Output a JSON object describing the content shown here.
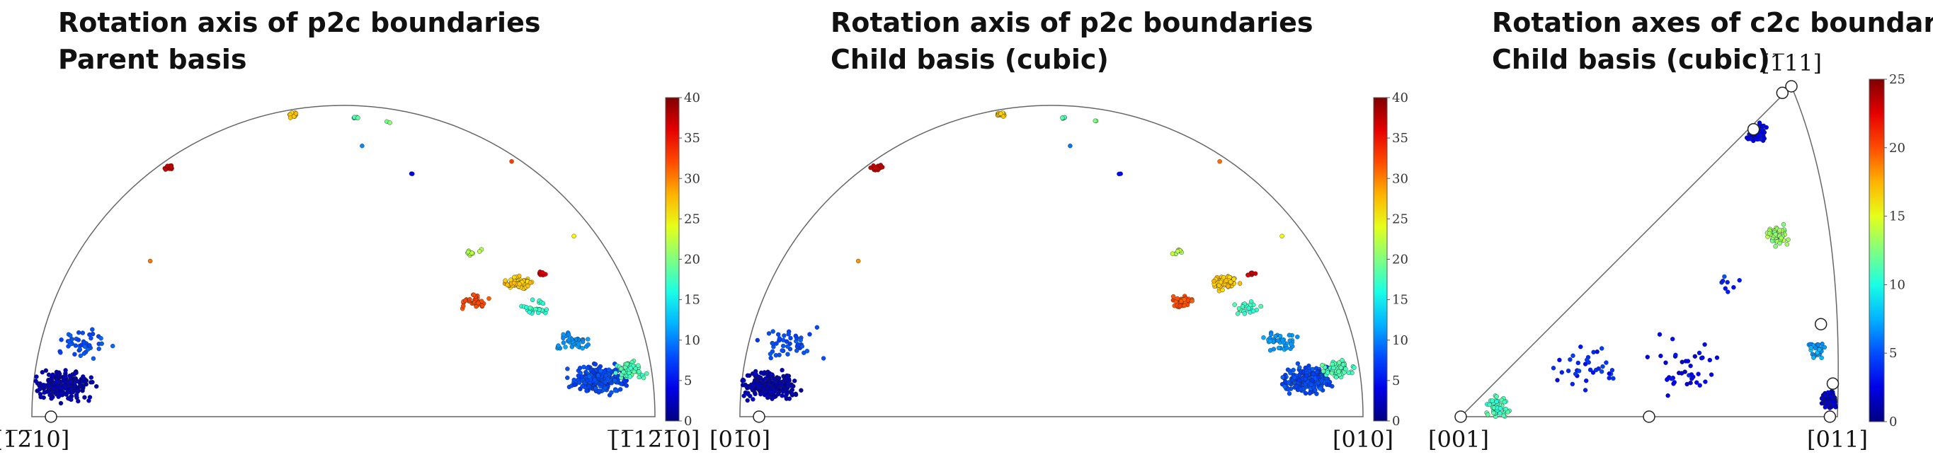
{
  "panels": [
    {
      "title_line1": "Rotation axis of p2c boundaries",
      "title_line2": "Parent basis",
      "pole_labels": {
        "left": "[1̅2̅10]",
        "right": "[̅1̅12̅1̅0]"
      }
    },
    {
      "title_line1": "Rotation axis of p2c boundaries",
      "title_line2": "Child basis (cubic)",
      "pole_labels": {
        "left": "[01̅0]",
        "right": "[010]"
      }
    },
    {
      "title_line1": "Rotation axes of c2c boundaries",
      "title_line2": "Child basis (cubic)",
      "pole_labels": {
        "top": "[1̅11]",
        "left": "[001]",
        "right": "[011]"
      }
    }
  ],
  "chart_data": [
    {
      "type": "scatter",
      "projection": "stereographic half-disk",
      "title": "Rotation axis of p2c boundaries",
      "subtitle": "Parent basis",
      "colorbar": {
        "min": 0,
        "max": 40,
        "ticks": [
          0,
          5,
          10,
          15,
          20,
          25,
          30,
          35,
          40
        ],
        "colormap": "jet"
      },
      "clusters": [
        {
          "x": 0.05,
          "y": 0.1,
          "value": 2,
          "n": 240,
          "spread": 0.06
        },
        {
          "x": 0.08,
          "y": 0.23,
          "value": 8,
          "n": 45,
          "spread": 0.07
        },
        {
          "x": 0.91,
          "y": 0.12,
          "value": 8,
          "n": 230,
          "spread": 0.06
        },
        {
          "x": 0.96,
          "y": 0.15,
          "value": 18,
          "n": 60,
          "spread": 0.035
        },
        {
          "x": 0.87,
          "y": 0.24,
          "value": 11,
          "n": 40,
          "spread": 0.04
        },
        {
          "x": 0.78,
          "y": 0.43,
          "value": 27,
          "n": 70,
          "spread": 0.028
        },
        {
          "x": 0.71,
          "y": 0.37,
          "value": 32,
          "n": 35,
          "spread": 0.03
        },
        {
          "x": 0.81,
          "y": 0.35,
          "value": 17,
          "n": 25,
          "spread": 0.03
        },
        {
          "x": 0.71,
          "y": 0.53,
          "value": 22,
          "n": 10,
          "spread": 0.02
        },
        {
          "x": 0.82,
          "y": 0.46,
          "value": 37,
          "n": 10,
          "spread": 0.01
        },
        {
          "x": 0.22,
          "y": 0.8,
          "value": 37,
          "n": 18,
          "spread": 0.012
        },
        {
          "x": 0.42,
          "y": 0.97,
          "value": 27,
          "n": 16,
          "spread": 0.012
        },
        {
          "x": 0.52,
          "y": 0.96,
          "value": 18,
          "n": 7,
          "spread": 0.006
        },
        {
          "x": 0.57,
          "y": 0.95,
          "value": 20,
          "n": 2,
          "spread": 0.01
        },
        {
          "x": 0.53,
          "y": 0.87,
          "value": 10,
          "n": 1,
          "spread": 0.0
        },
        {
          "x": 0.61,
          "y": 0.78,
          "value": 5,
          "n": 2,
          "spread": 0.004
        },
        {
          "x": 0.19,
          "y": 0.5,
          "value": 30,
          "n": 1,
          "spread": 0.0
        },
        {
          "x": 0.77,
          "y": 0.82,
          "value": 32,
          "n": 1,
          "spread": 0.0
        },
        {
          "x": 0.87,
          "y": 0.58,
          "value": 25,
          "n": 1,
          "spread": 0.0
        }
      ]
    },
    {
      "type": "scatter",
      "projection": "stereographic half-disk",
      "title": "Rotation axis of p2c boundaries",
      "subtitle": "Child basis (cubic)",
      "colorbar": {
        "min": 0,
        "max": 40,
        "ticks": [
          0,
          5,
          10,
          15,
          20,
          25,
          30,
          35,
          40
        ],
        "colormap": "jet"
      },
      "clusters": [
        {
          "x": 0.05,
          "y": 0.1,
          "value": 2,
          "n": 240,
          "spread": 0.06
        },
        {
          "x": 0.08,
          "y": 0.23,
          "value": 8,
          "n": 45,
          "spread": 0.07
        },
        {
          "x": 0.91,
          "y": 0.12,
          "value": 8,
          "n": 230,
          "spread": 0.06
        },
        {
          "x": 0.96,
          "y": 0.15,
          "value": 18,
          "n": 60,
          "spread": 0.035
        },
        {
          "x": 0.87,
          "y": 0.24,
          "value": 11,
          "n": 40,
          "spread": 0.04
        },
        {
          "x": 0.78,
          "y": 0.43,
          "value": 27,
          "n": 70,
          "spread": 0.028
        },
        {
          "x": 0.71,
          "y": 0.37,
          "value": 32,
          "n": 35,
          "spread": 0.03
        },
        {
          "x": 0.81,
          "y": 0.35,
          "value": 17,
          "n": 25,
          "spread": 0.03
        },
        {
          "x": 0.71,
          "y": 0.53,
          "value": 22,
          "n": 10,
          "spread": 0.02
        },
        {
          "x": 0.82,
          "y": 0.46,
          "value": 37,
          "n": 10,
          "spread": 0.01
        },
        {
          "x": 0.22,
          "y": 0.8,
          "value": 37,
          "n": 18,
          "spread": 0.012
        },
        {
          "x": 0.42,
          "y": 0.97,
          "value": 27,
          "n": 16,
          "spread": 0.012
        },
        {
          "x": 0.52,
          "y": 0.96,
          "value": 18,
          "n": 7,
          "spread": 0.006
        },
        {
          "x": 0.57,
          "y": 0.95,
          "value": 20,
          "n": 2,
          "spread": 0.01
        },
        {
          "x": 0.53,
          "y": 0.87,
          "value": 10,
          "n": 1,
          "spread": 0.0
        },
        {
          "x": 0.61,
          "y": 0.78,
          "value": 5,
          "n": 2,
          "spread": 0.004
        },
        {
          "x": 0.19,
          "y": 0.5,
          "value": 30,
          "n": 1,
          "spread": 0.0
        },
        {
          "x": 0.77,
          "y": 0.82,
          "value": 32,
          "n": 1,
          "spread": 0.0
        },
        {
          "x": 0.87,
          "y": 0.58,
          "value": 25,
          "n": 1,
          "spread": 0.0
        }
      ]
    },
    {
      "type": "scatter",
      "projection": "cubic standard triangle",
      "title": "Rotation axes of c2c boundaries",
      "subtitle": "Child basis (cubic)",
      "colorbar": {
        "min": 0,
        "max": 25,
        "ticks": [
          0,
          5,
          10,
          15,
          20,
          25
        ],
        "colormap": "jet"
      },
      "clusters": [
        {
          "x": 0.87,
          "y": 0.87,
          "value": 3,
          "n": 160,
          "spread": 0.04
        },
        {
          "x": 0.99,
          "y": 0.05,
          "value": 2,
          "n": 220,
          "spread": 0.03
        },
        {
          "x": 0.97,
          "y": 0.2,
          "value": 7,
          "n": 30,
          "spread": 0.04
        },
        {
          "x": 0.9,
          "y": 0.55,
          "value": 13,
          "n": 55,
          "spread": 0.04
        },
        {
          "x": 0.1,
          "y": 0.03,
          "value": 11,
          "n": 50,
          "spread": 0.05
        },
        {
          "x": 0.35,
          "y": 0.15,
          "value": 4,
          "n": 35,
          "spread": 0.12
        },
        {
          "x": 0.6,
          "y": 0.15,
          "value": 3,
          "n": 40,
          "spread": 0.12
        },
        {
          "x": 0.75,
          "y": 0.4,
          "value": 4,
          "n": 8,
          "spread": 0.06
        }
      ],
      "markers": [
        {
          "x": 0.0,
          "y": 0.0
        },
        {
          "x": 0.5,
          "y": 0.0
        },
        {
          "x": 0.98,
          "y": 0.0
        },
        {
          "x": 1.0,
          "y": 0.1
        },
        {
          "x": 0.99,
          "y": 0.28
        },
        {
          "x": 0.87,
          "y": 0.87
        },
        {
          "x": 0.97,
          "y": 0.98
        },
        {
          "x": 1.0,
          "y": 1.0
        }
      ]
    }
  ]
}
